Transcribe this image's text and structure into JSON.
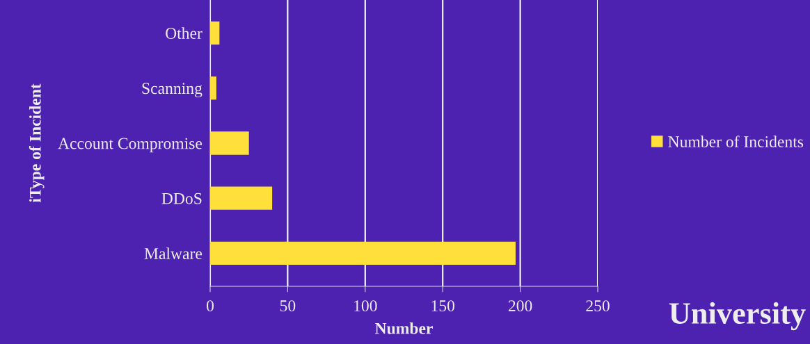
{
  "chart_data": {
    "type": "bar",
    "orientation": "horizontal",
    "title": "University",
    "categories": [
      "Other",
      "Scanning",
      "Account Compromise",
      "DDoS",
      "Malware"
    ],
    "series": [
      {
        "name": "Number of Incidents",
        "color": "#ffe03a",
        "values": [
          6,
          4,
          25,
          40,
          197
        ]
      }
    ],
    "xlabel": "Number",
    "ylabel": "iType of Incident",
    "xlim": [
      0,
      250
    ],
    "xticks": [
      0,
      50,
      100,
      150,
      200,
      250
    ],
    "grid": "x",
    "legend": "right"
  }
}
